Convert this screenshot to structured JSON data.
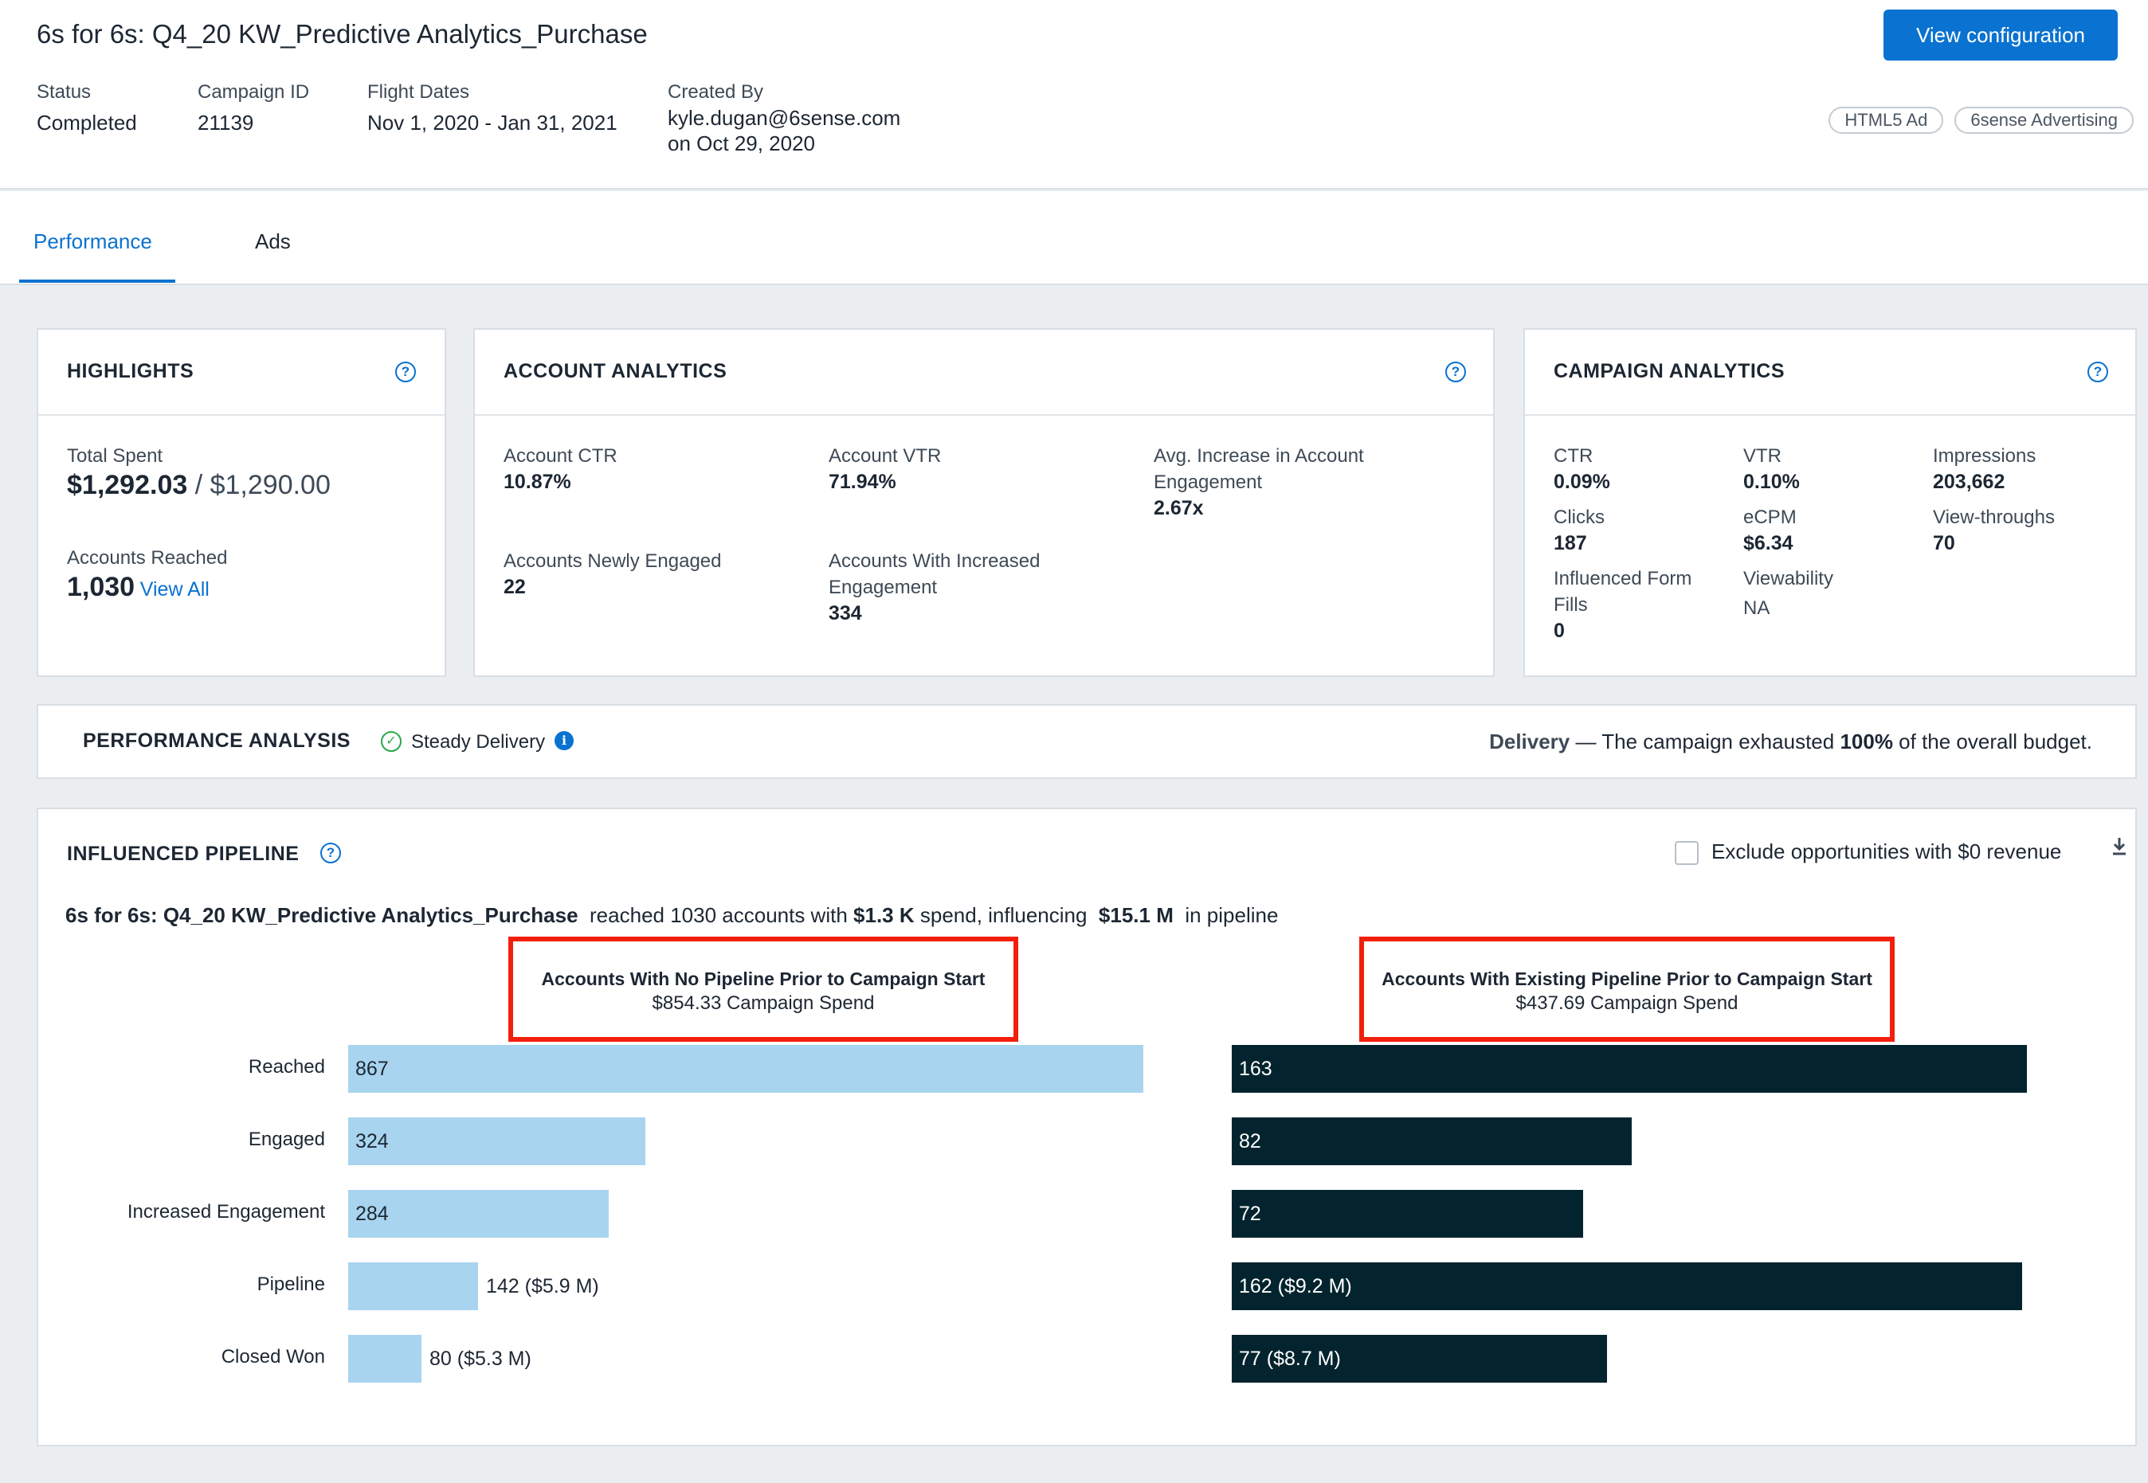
{
  "header": {
    "title": "6s for 6s: Q4_20 KW_Predictive Analytics_Purchase",
    "config_button": "View configuration",
    "status_label": "Status",
    "status_value": "Completed",
    "campaign_id_label": "Campaign ID",
    "campaign_id_value": "21139",
    "flight_label": "Flight Dates",
    "flight_value": "Nov 1, 2020 - Jan 31, 2021",
    "created_label": "Created By",
    "created_by": "kyle.dugan@6sense.com",
    "created_on": "on Oct 29, 2020",
    "tags": [
      "HTML5 Ad",
      "6sense Advertising"
    ]
  },
  "tabs": [
    {
      "label": "Performance",
      "active": true
    },
    {
      "label": "Ads",
      "active": false
    }
  ],
  "highlights": {
    "title": "HIGHLIGHTS",
    "total_spent_label": "Total Spent",
    "total_spent": "$1,292.03",
    "budget_separator": " / ",
    "budget": "$1,290.00",
    "accounts_reached_label": "Accounts Reached",
    "accounts_reached": "1,030",
    "view_all": "View All"
  },
  "account_analytics": {
    "title": "ACCOUNT ANALYTICS",
    "metrics": [
      {
        "label": "Account CTR",
        "value": "10.87%"
      },
      {
        "label": "Account VTR",
        "value": "71.94%"
      },
      {
        "label": "Avg. Increase in Account Engagement",
        "value": "2.67x"
      },
      {
        "label": "Accounts Newly Engaged",
        "value": "22"
      },
      {
        "label": "Accounts With Increased Engagement",
        "value": "334"
      }
    ]
  },
  "campaign_analytics": {
    "title": "CAMPAIGN ANALYTICS",
    "metrics": [
      {
        "label": "CTR",
        "value": "0.09%"
      },
      {
        "label": "VTR",
        "value": "0.10%"
      },
      {
        "label": "Impressions",
        "value": "203,662"
      },
      {
        "label": "Clicks",
        "value": "187"
      },
      {
        "label": "eCPM",
        "value": "$6.34"
      },
      {
        "label": "View-throughs",
        "value": "70"
      },
      {
        "label": "Influenced Form Fills",
        "value": "0"
      },
      {
        "label": "Viewability",
        "value": "NA"
      }
    ]
  },
  "performance_analysis": {
    "title": "PERFORMANCE ANALYSIS",
    "status": "Steady Delivery",
    "delivery_label": "Delivery",
    "delivery_prefix": " — The campaign exhausted ",
    "delivery_pct": "100%",
    "delivery_suffix": " of the overall budget."
  },
  "pipeline": {
    "title": "INFLUENCED PIPELINE",
    "exclude_label": "Exclude opportunities with $0 revenue",
    "summary_campaign": "6s for 6s: Q4_20 KW_Predictive Analytics_Purchase",
    "summary_reached": "  reached 1030 accounts with ",
    "summary_spend": "$1.3 K",
    "summary_mid": " spend, influencing  ",
    "summary_pipeline": "$15.1 M",
    "summary_end": "  in pipeline"
  },
  "chart_data": {
    "type": "bar",
    "categories": [
      "Reached",
      "Engaged",
      "Increased Engagement",
      "Pipeline",
      "Closed Won"
    ],
    "series": [
      {
        "name": "Accounts With No Pipeline Prior to Campaign Start",
        "subtitle": "$854.33 Campaign Spend",
        "values": [
          867,
          324,
          284,
          142,
          80
        ],
        "labels": [
          "867",
          "324",
          "284",
          "142 ($5.9 M)",
          "80 ($5.3 M)"
        ],
        "color": "#a8d4ef"
      },
      {
        "name": "Accounts With Existing Pipeline Prior to Campaign Start",
        "subtitle": "$437.69 Campaign Spend",
        "values": [
          163,
          82,
          72,
          162,
          77
        ],
        "labels": [
          "163",
          "82",
          "72",
          "162 ($9.2 M)",
          "77 ($8.7 M)"
        ],
        "color": "#03242e"
      }
    ]
  }
}
